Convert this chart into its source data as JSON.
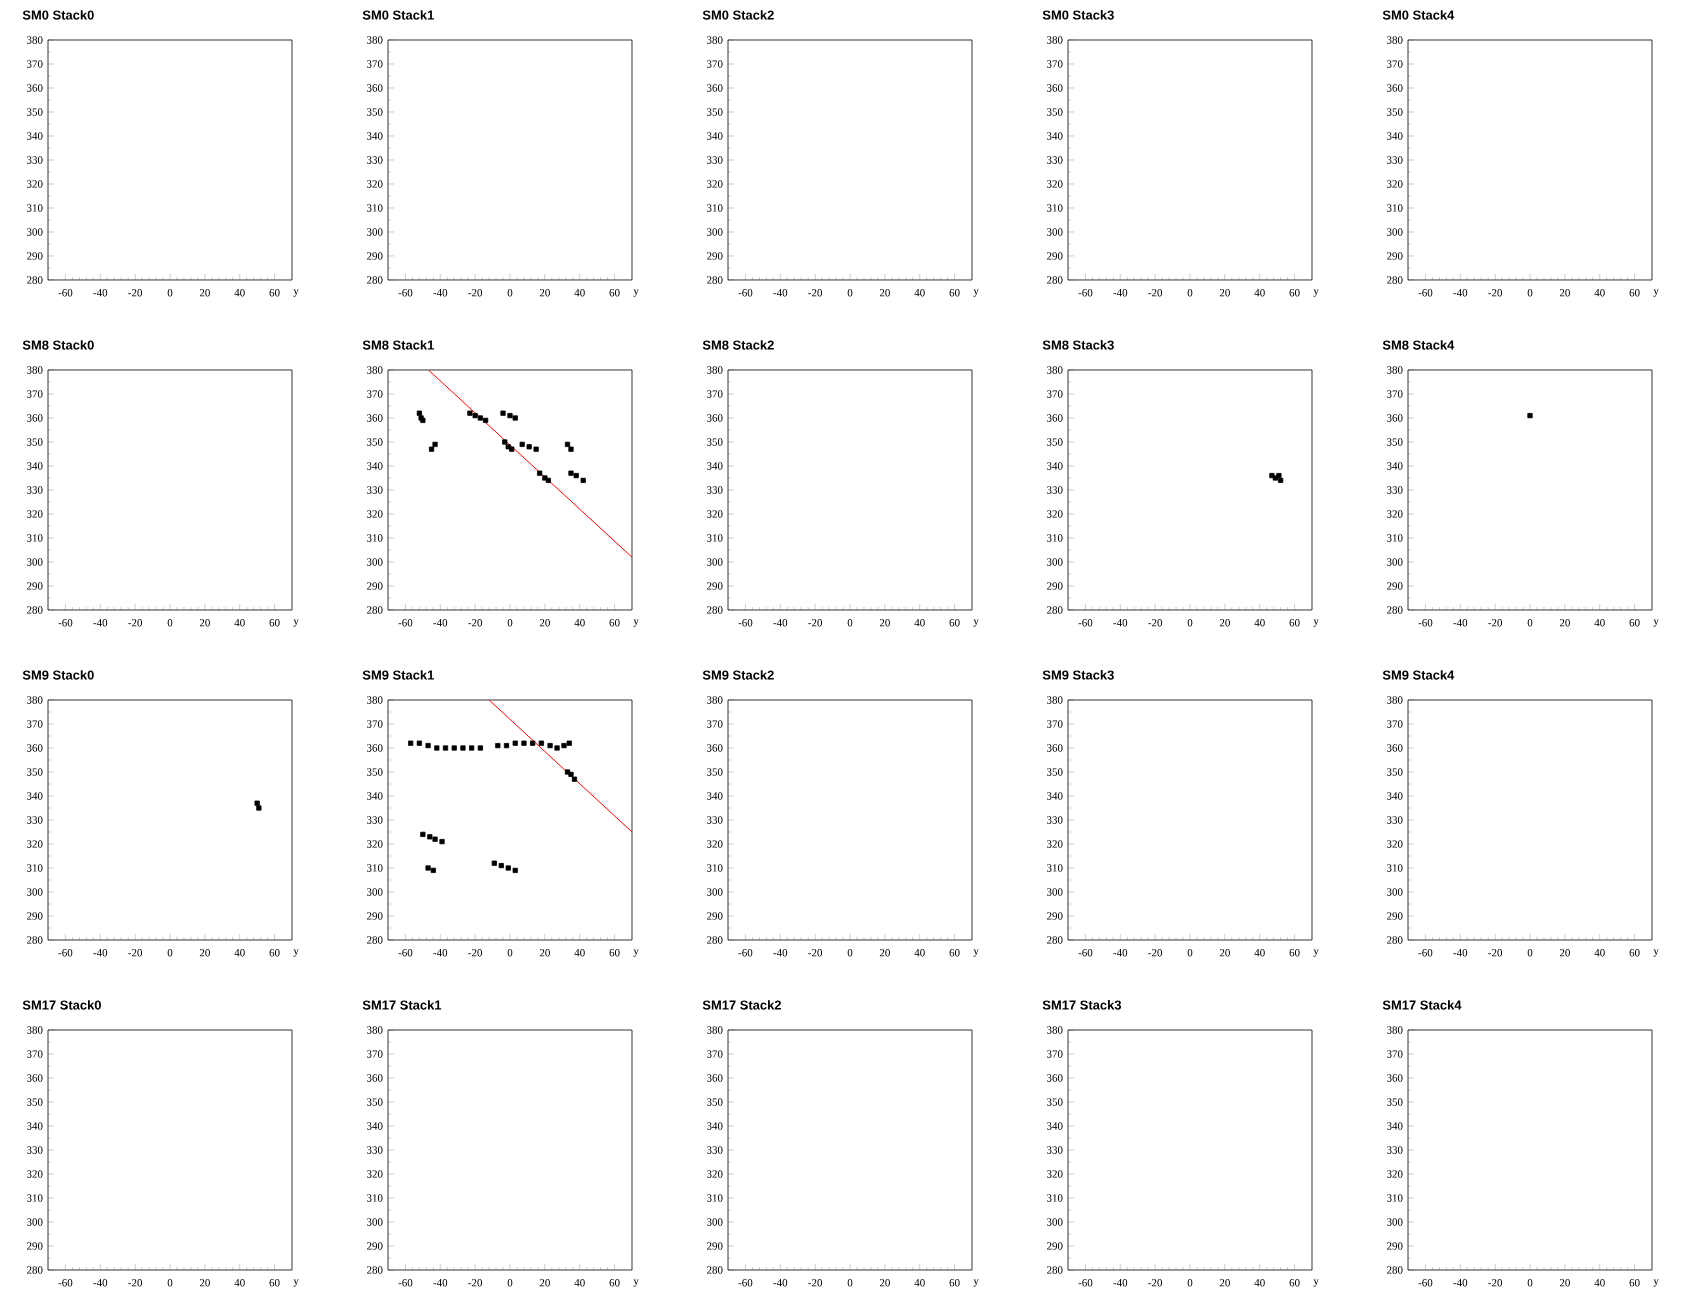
{
  "chart_data": [
    {
      "type": "scatter",
      "title": "SM0 Stack0",
      "xlabel": "y",
      "xlim": [
        -70,
        70
      ],
      "xticks": [
        -60,
        -40,
        -20,
        0,
        20,
        40,
        60
      ],
      "ylim": [
        280,
        380
      ],
      "yticks": [
        280,
        290,
        300,
        310,
        320,
        330,
        340,
        350,
        360,
        370,
        380
      ]
    },
    {
      "type": "scatter",
      "title": "SM0 Stack1",
      "xlabel": "y",
      "xlim": [
        -70,
        70
      ],
      "xticks": [
        -60,
        -40,
        -20,
        0,
        20,
        40,
        60
      ],
      "ylim": [
        280,
        380
      ],
      "yticks": [
        280,
        290,
        300,
        310,
        320,
        330,
        340,
        350,
        360,
        370,
        380
      ]
    },
    {
      "type": "scatter",
      "title": "SM0 Stack2",
      "xlabel": "y",
      "xlim": [
        -70,
        70
      ],
      "xticks": [
        -60,
        -40,
        -20,
        0,
        20,
        40,
        60
      ],
      "ylim": [
        280,
        380
      ],
      "yticks": [
        280,
        290,
        300,
        310,
        320,
        330,
        340,
        350,
        360,
        370,
        380
      ]
    },
    {
      "type": "scatter",
      "title": "SM0 Stack3",
      "xlabel": "y",
      "xlim": [
        -70,
        70
      ],
      "xticks": [
        -60,
        -40,
        -20,
        0,
        20,
        40,
        60
      ],
      "ylim": [
        280,
        380
      ],
      "yticks": [
        280,
        290,
        300,
        310,
        320,
        330,
        340,
        350,
        360,
        370,
        380
      ]
    },
    {
      "type": "scatter",
      "title": "SM0 Stack4",
      "xlabel": "y",
      "xlim": [
        -70,
        70
      ],
      "xticks": [
        -60,
        -40,
        -20,
        0,
        20,
        40,
        60
      ],
      "ylim": [
        280,
        380
      ],
      "yticks": [
        280,
        290,
        300,
        310,
        320,
        330,
        340,
        350,
        360,
        370,
        380
      ]
    },
    {
      "type": "scatter",
      "title": "SM8 Stack0",
      "xlabel": "y",
      "xlim": [
        -70,
        70
      ],
      "xticks": [
        -60,
        -40,
        -20,
        0,
        20,
        40,
        60
      ],
      "ylim": [
        280,
        380
      ],
      "yticks": [
        280,
        290,
        300,
        310,
        320,
        330,
        340,
        350,
        360,
        370,
        380
      ]
    },
    {
      "type": "scatter",
      "title": "SM8 Stack1",
      "xlabel": "y",
      "xlim": [
        -70,
        70
      ],
      "xticks": [
        -60,
        -40,
        -20,
        0,
        20,
        40,
        60
      ],
      "ylim": [
        280,
        380
      ],
      "yticks": [
        280,
        290,
        300,
        310,
        320,
        330,
        340,
        350,
        360,
        370,
        380
      ],
      "series": [
        {
          "type": "scatter",
          "marker": "square",
          "color": "#000000",
          "x": [
            -52,
            -51,
            -50,
            -45,
            -43,
            -23,
            -20,
            -17,
            -14,
            -4,
            0,
            3,
            -3,
            -1,
            1,
            7,
            11,
            15,
            17,
            20,
            22,
            33,
            35,
            35,
            38,
            42
          ],
          "values": [
            362,
            360,
            359,
            347,
            349,
            362,
            361,
            360,
            359,
            362,
            361,
            360,
            350,
            348,
            347,
            349,
            348,
            347,
            337,
            335,
            334,
            349,
            347,
            337,
            336,
            334
          ]
        },
        {
          "type": "line",
          "color": "#ff0000",
          "x": [
            -46.8,
            70
          ],
          "values": [
            380,
            302
          ]
        }
      ]
    },
    {
      "type": "scatter",
      "title": "SM8 Stack2",
      "xlabel": "y",
      "xlim": [
        -70,
        70
      ],
      "xticks": [
        -60,
        -40,
        -20,
        0,
        20,
        40,
        60
      ],
      "ylim": [
        280,
        380
      ],
      "yticks": [
        280,
        290,
        300,
        310,
        320,
        330,
        340,
        350,
        360,
        370,
        380
      ]
    },
    {
      "type": "scatter",
      "title": "SM8 Stack3",
      "xlabel": "y",
      "xlim": [
        -70,
        70
      ],
      "xticks": [
        -60,
        -40,
        -20,
        0,
        20,
        40,
        60
      ],
      "ylim": [
        280,
        380
      ],
      "yticks": [
        280,
        290,
        300,
        310,
        320,
        330,
        340,
        350,
        360,
        370,
        380
      ],
      "series": [
        {
          "type": "scatter",
          "marker": "square",
          "color": "#000000",
          "x": [
            47,
            49,
            51,
            52
          ],
          "values": [
            336,
            335,
            336,
            334
          ]
        }
      ]
    },
    {
      "type": "scatter",
      "title": "SM8 Stack4",
      "xlabel": "y",
      "xlim": [
        -70,
        70
      ],
      "xticks": [
        -60,
        -40,
        -20,
        0,
        20,
        40,
        60
      ],
      "ylim": [
        280,
        380
      ],
      "yticks": [
        280,
        290,
        300,
        310,
        320,
        330,
        340,
        350,
        360,
        370,
        380
      ],
      "series": [
        {
          "type": "scatter",
          "marker": "square",
          "color": "#000000",
          "x": [
            0
          ],
          "values": [
            361
          ]
        }
      ]
    },
    {
      "type": "scatter",
      "title": "SM9 Stack0",
      "xlabel": "y",
      "xlim": [
        -70,
        70
      ],
      "xticks": [
        -60,
        -40,
        -20,
        0,
        20,
        40,
        60
      ],
      "ylim": [
        280,
        380
      ],
      "yticks": [
        280,
        290,
        300,
        310,
        320,
        330,
        340,
        350,
        360,
        370,
        380
      ],
      "series": [
        {
          "type": "scatter",
          "marker": "square",
          "color": "#000000",
          "x": [
            50,
            51
          ],
          "values": [
            337,
            335
          ]
        }
      ]
    },
    {
      "type": "scatter",
      "title": "SM9 Stack1",
      "xlabel": "y",
      "xlim": [
        -70,
        70
      ],
      "xticks": [
        -60,
        -40,
        -20,
        0,
        20,
        40,
        60
      ],
      "ylim": [
        280,
        380
      ],
      "yticks": [
        280,
        290,
        300,
        310,
        320,
        330,
        340,
        350,
        360,
        370,
        380
      ],
      "series": [
        {
          "type": "scatter",
          "marker": "square",
          "color": "#000000",
          "x": [
            -57,
            -52,
            -47,
            -42,
            -37,
            -32,
            -27,
            -22,
            -17,
            -7,
            -2,
            3,
            8,
            13,
            18,
            23,
            27,
            31,
            34,
            33,
            35,
            37,
            -50,
            -46,
            -43,
            -39,
            -47,
            -44,
            -9,
            -5,
            -1,
            3
          ],
          "values": [
            362,
            362,
            361,
            360,
            360,
            360,
            360,
            360,
            360,
            361,
            361,
            362,
            362,
            362,
            362,
            361,
            360,
            361,
            362,
            350,
            349,
            347,
            324,
            323,
            322,
            321,
            310,
            309,
            312,
            311,
            310,
            309
          ]
        },
        {
          "type": "line",
          "color": "#ff0000",
          "x": [
            -12,
            70
          ],
          "values": [
            380,
            325
          ]
        }
      ]
    },
    {
      "type": "scatter",
      "title": "SM9 Stack2",
      "xlabel": "y",
      "xlim": [
        -70,
        70
      ],
      "xticks": [
        -60,
        -40,
        -20,
        0,
        20,
        40,
        60
      ],
      "ylim": [
        280,
        380
      ],
      "yticks": [
        280,
        290,
        300,
        310,
        320,
        330,
        340,
        350,
        360,
        370,
        380
      ]
    },
    {
      "type": "scatter",
      "title": "SM9 Stack3",
      "xlabel": "y",
      "xlim": [
        -70,
        70
      ],
      "xticks": [
        -60,
        -40,
        -20,
        0,
        20,
        40,
        60
      ],
      "ylim": [
        280,
        380
      ],
      "yticks": [
        280,
        290,
        300,
        310,
        320,
        330,
        340,
        350,
        360,
        370,
        380
      ]
    },
    {
      "type": "scatter",
      "title": "SM9 Stack4",
      "xlabel": "y",
      "xlim": [
        -70,
        70
      ],
      "xticks": [
        -60,
        -40,
        -20,
        0,
        20,
        40,
        60
      ],
      "ylim": [
        280,
        380
      ],
      "yticks": [
        280,
        290,
        300,
        310,
        320,
        330,
        340,
        350,
        360,
        370,
        380
      ]
    },
    {
      "type": "scatter",
      "title": "SM17 Stack0",
      "xlabel": "y",
      "xlim": [
        -70,
        70
      ],
      "xticks": [
        -60,
        -40,
        -20,
        0,
        20,
        40,
        60
      ],
      "ylim": [
        280,
        380
      ],
      "yticks": [
        280,
        290,
        300,
        310,
        320,
        330,
        340,
        350,
        360,
        370,
        380
      ]
    },
    {
      "type": "scatter",
      "title": "SM17 Stack1",
      "xlabel": "y",
      "xlim": [
        -70,
        70
      ],
      "xticks": [
        -60,
        -40,
        -20,
        0,
        20,
        40,
        60
      ],
      "ylim": [
        280,
        380
      ],
      "yticks": [
        280,
        290,
        300,
        310,
        320,
        330,
        340,
        350,
        360,
        370,
        380
      ]
    },
    {
      "type": "scatter",
      "title": "SM17 Stack2",
      "xlabel": "y",
      "xlim": [
        -70,
        70
      ],
      "xticks": [
        -60,
        -40,
        -20,
        0,
        20,
        40,
        60
      ],
      "ylim": [
        280,
        380
      ],
      "yticks": [
        280,
        290,
        300,
        310,
        320,
        330,
        340,
        350,
        360,
        370,
        380
      ]
    },
    {
      "type": "scatter",
      "title": "SM17 Stack3",
      "xlabel": "y",
      "xlim": [
        -70,
        70
      ],
      "xticks": [
        -60,
        -40,
        -20,
        0,
        20,
        40,
        60
      ],
      "ylim": [
        280,
        380
      ],
      "yticks": [
        280,
        290,
        300,
        310,
        320,
        330,
        340,
        350,
        360,
        370,
        380
      ]
    },
    {
      "type": "scatter",
      "title": "SM17 Stack4",
      "xlabel": "y",
      "xlim": [
        -70,
        70
      ],
      "xticks": [
        -60,
        -40,
        -20,
        0,
        20,
        40,
        60
      ],
      "ylim": [
        280,
        380
      ],
      "yticks": [
        280,
        290,
        300,
        310,
        320,
        330,
        340,
        350,
        360,
        370,
        380
      ]
    }
  ]
}
